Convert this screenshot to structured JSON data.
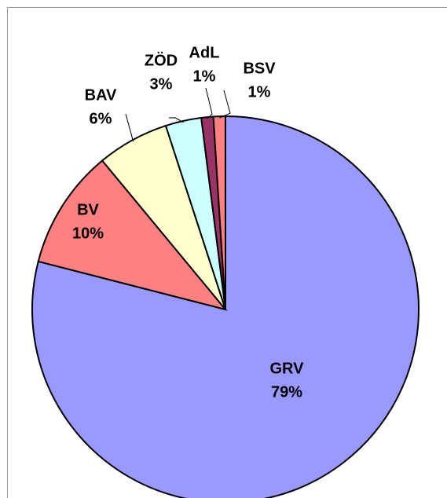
{
  "chart_data": {
    "type": "pie",
    "categories": [
      "GRV",
      "BV",
      "BAV",
      "ZÖD",
      "AdL",
      "BSV"
    ],
    "values": [
      79,
      10,
      6,
      3,
      1,
      1
    ],
    "value_labels": [
      "79%",
      "10%",
      "6%",
      "3%",
      "1%",
      "1%"
    ],
    "colors": [
      "#9999ff",
      "#ff8080",
      "#ffffcc",
      "#ccffff",
      "#993366",
      "#ff8080"
    ]
  }
}
